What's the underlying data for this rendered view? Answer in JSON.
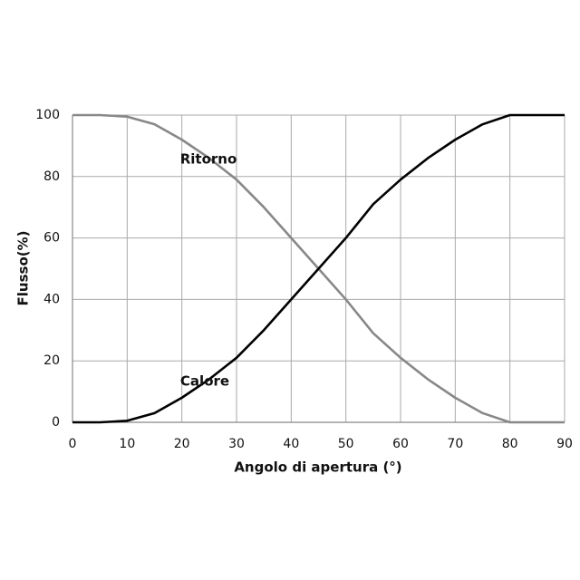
{
  "chart_data": {
    "type": "line",
    "x_label": "Angolo di apertura (°)",
    "y_label": "Flusso(%)",
    "x": [
      0,
      5,
      10,
      15,
      20,
      25,
      30,
      35,
      40,
      45,
      50,
      55,
      60,
      65,
      70,
      75,
      80,
      85,
      90
    ],
    "series": [
      {
        "name": "Ritorno",
        "color": "#888888",
        "values": [
          100,
          100,
          99.5,
          97,
          92,
          86,
          79,
          70,
          60,
          50,
          40,
          29,
          21,
          14,
          8,
          3,
          0,
          0,
          0
        ]
      },
      {
        "name": "Calore",
        "color": "#000000",
        "values": [
          0,
          0,
          0.5,
          3,
          8,
          14,
          21,
          30,
          40,
          50,
          60,
          71,
          79,
          86,
          92,
          97,
          100,
          100,
          100
        ]
      }
    ],
    "xlim": [
      0,
      90
    ],
    "xticks": [
      0,
      10,
      20,
      30,
      40,
      50,
      60,
      70,
      80,
      90
    ],
    "ylim": [
      0,
      100
    ],
    "yticks": [
      0,
      20,
      40,
      60,
      80,
      100
    ],
    "grid": true
  }
}
